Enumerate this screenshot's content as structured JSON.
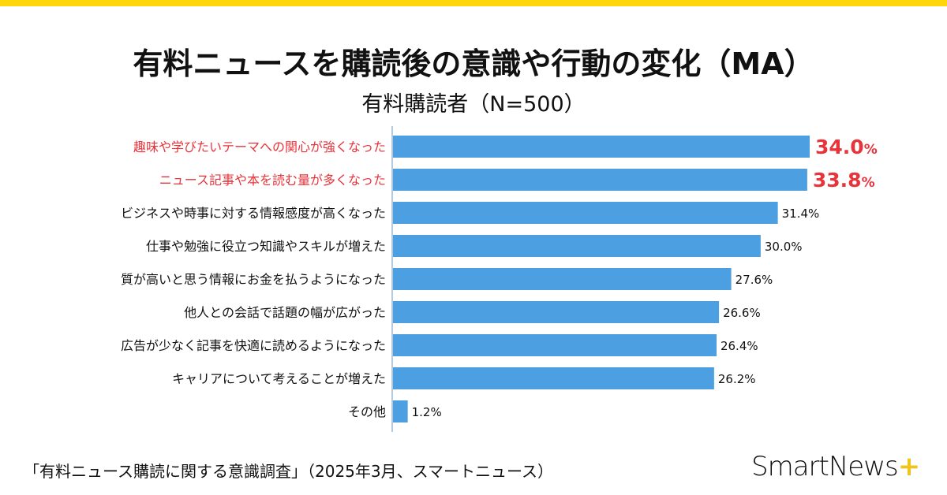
{
  "colors": {
    "top_bar": "#FFD60A",
    "bar": "#4C9FE0",
    "highlight": "#E8333A",
    "text": "#111111",
    "logo_plus": "#F2C31B"
  },
  "header": {
    "title": "有料ニュースを購読後の意識や行動の変化（MA）",
    "subtitle": "有料購読者（N=500）"
  },
  "chart_data": {
    "type": "bar",
    "orientation": "horizontal",
    "categories": [
      "趣味や学びたいテーマへの関心が強くなった",
      "ニュース記事や本を読む量が多くなった",
      "ビジネスや時事に対する情報感度が高くなった",
      "仕事や勉強に役立つ知識やスキルが増えた",
      "質が高いと思う情報にお金を払うようになった",
      "他人との会話で話題の幅が広がった",
      "広告が少なく記事を快適に読めるようになった",
      "キャリアについて考えることが増えた",
      "その他"
    ],
    "values": [
      34.0,
      33.8,
      31.4,
      30.0,
      27.6,
      26.6,
      26.4,
      26.2,
      1.2
    ],
    "value_labels": [
      "34.0",
      "33.8",
      "31.4",
      "30.0",
      "27.6",
      "26.6",
      "26.4",
      "26.2",
      "1.2"
    ],
    "unit": "%",
    "highlighted": [
      0,
      1
    ],
    "xlim": [
      0,
      34
    ],
    "grid": false
  },
  "footer": {
    "source": "「有料ニュース購読に関する意識調査」（2025年3月、スマートニュース）",
    "logo_text": "SmartNews",
    "logo_plus": "+"
  }
}
